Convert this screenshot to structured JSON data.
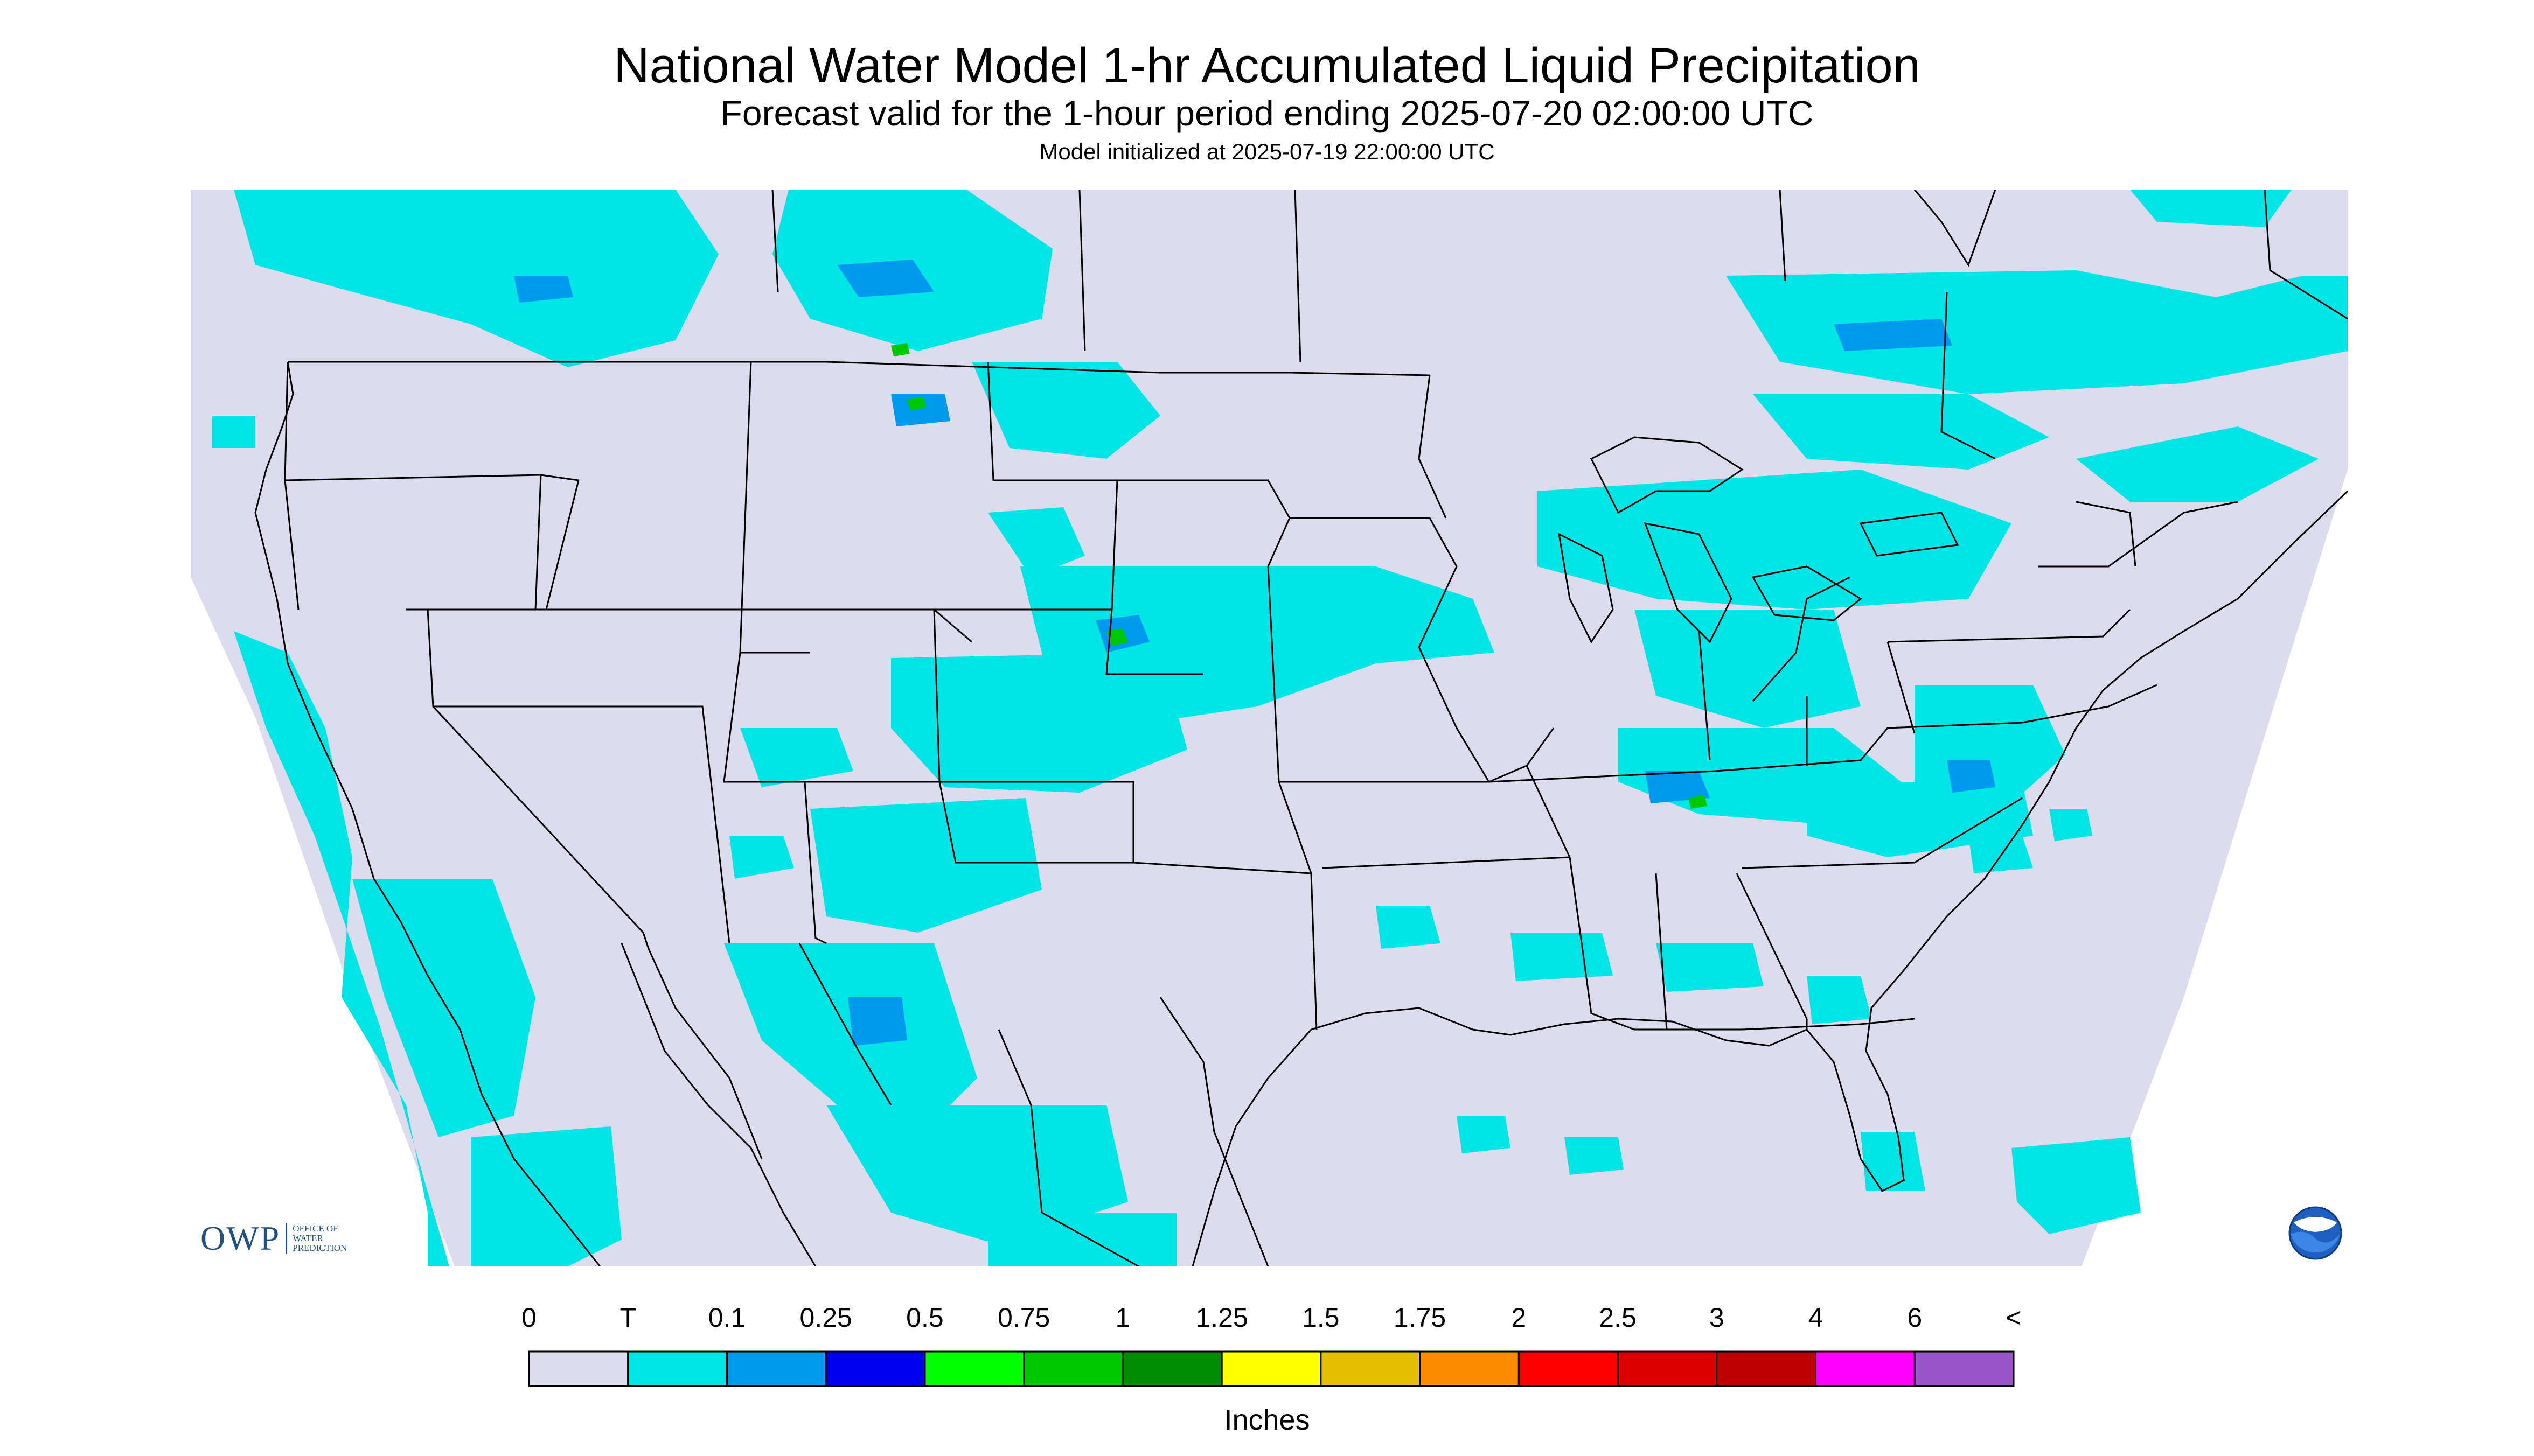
{
  "header": {
    "title": "National Water Model 1-hr Accumulated Liquid Precipitation",
    "subtitle": "Forecast valid for the 1-hour period ending 2025-07-20 02:00:00 UTC",
    "init": "Model initialized at 2025-07-19 22:00:00 UTC"
  },
  "colors": {
    "no_data": "#ffffff",
    "background_zero": "#dcdcee",
    "trace": "#00e5e5",
    "outline": "#000000"
  },
  "legend": {
    "units": "Inches",
    "ticks": [
      "0",
      "T",
      "0.1",
      "0.25",
      "0.5",
      "0.75",
      "1",
      "1.25",
      "1.5",
      "1.75",
      "2",
      "2.5",
      "3",
      "4",
      "6",
      "<"
    ],
    "colors": [
      "#dcdcee",
      "#00e5e5",
      "#0099f0",
      "#0000f0",
      "#00ff00",
      "#00c800",
      "#008c00",
      "#ffff00",
      "#e6be00",
      "#ff8c00",
      "#ff0000",
      "#dc0000",
      "#be0000",
      "#ff00ff",
      "#9955c9"
    ]
  },
  "logos": {
    "owp_mark": "OWP",
    "owp_text": [
      "OFFICE OF",
      "WATER",
      "PREDICTION"
    ],
    "noaa_icon": "noaa-logo-icon"
  }
}
